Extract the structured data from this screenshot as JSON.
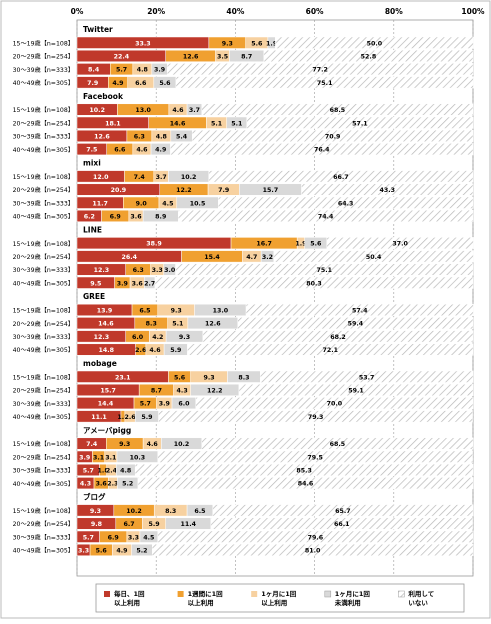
{
  "chart_data": {
    "type": "bar",
    "stacked": true,
    "orientation": "horizontal",
    "xlim": [
      0,
      100
    ],
    "x_ticks": [
      "0%",
      "20%",
      "40%",
      "60%",
      "80%",
      "100%"
    ],
    "colors": [
      "#c0392b",
      "#f0a030",
      "#f7d1a0",
      "#d9d9d9",
      "#ffffff"
    ],
    "legend": {
      "placement": "bottom",
      "items": [
        {
          "label": "毎日、1回以上利用",
          "color": "#c0392b"
        },
        {
          "label": "1週間に1回以上利用",
          "color": "#f0a030"
        },
        {
          "label": "1ヶ月に1回以上利用",
          "color": "#f7d1a0"
        },
        {
          "label": "1ヶ月に1回未満利用",
          "color": "#d9d9d9"
        },
        {
          "label": "利用していない",
          "color": "#ffffff"
        }
      ]
    },
    "groups": [
      {
        "name": "Twitter",
        "rows": [
          {
            "label": "15〜19歳【n=108】",
            "values": [
              33.3,
              9.3,
              5.6,
              1.9,
              50.0
            ]
          },
          {
            "label": "20〜29歳【n=254】",
            "values": [
              22.4,
              12.6,
              3.5,
              8.7,
              52.8
            ]
          },
          {
            "label": "30〜39歳【n=333】",
            "values": [
              8.4,
              5.7,
              4.8,
              3.9,
              77.2
            ]
          },
          {
            "label": "40〜49歳【n=305】",
            "values": [
              7.9,
              4.9,
              6.6,
              5.6,
              75.1
            ]
          }
        ]
      },
      {
        "name": "Facebook",
        "rows": [
          {
            "label": "15〜19歳【n=108】",
            "values": [
              10.2,
              13.0,
              4.6,
              3.7,
              68.5
            ]
          },
          {
            "label": "20〜29歳【n=254】",
            "values": [
              18.1,
              14.6,
              5.1,
              5.1,
              57.1
            ]
          },
          {
            "label": "30〜39歳【n=333】",
            "values": [
              12.6,
              6.3,
              4.8,
              5.4,
              70.9
            ]
          },
          {
            "label": "40〜49歳【n=305】",
            "values": [
              7.5,
              6.6,
              4.6,
              4.9,
              76.4
            ]
          }
        ]
      },
      {
        "name": "mixi",
        "rows": [
          {
            "label": "15〜19歳【n=108】",
            "values": [
              12.0,
              7.4,
              3.7,
              10.2,
              66.7
            ]
          },
          {
            "label": "20〜29歳【n=254】",
            "values": [
              20.9,
              12.2,
              7.9,
              15.7,
              43.3
            ]
          },
          {
            "label": "30〜39歳【n=333】",
            "values": [
              11.7,
              9.0,
              4.5,
              10.5,
              64.3
            ]
          },
          {
            "label": "40〜49歳【n=305】",
            "values": [
              6.2,
              6.9,
              3.6,
              8.9,
              74.4
            ]
          }
        ]
      },
      {
        "name": "LINE",
        "rows": [
          {
            "label": "15〜19歳【n=108】",
            "values": [
              38.9,
              16.7,
              1.9,
              5.6,
              37.0
            ]
          },
          {
            "label": "20〜29歳【n=254】",
            "values": [
              26.4,
              15.4,
              4.7,
              3.2,
              50.4
            ]
          },
          {
            "label": "30〜39歳【n=333】",
            "values": [
              12.3,
              6.3,
              3.3,
              3.0,
              75.1
            ]
          },
          {
            "label": "40〜49歳【n=305】",
            "values": [
              9.5,
              3.9,
              3.6,
              2.7,
              80.3
            ]
          }
        ]
      },
      {
        "name": "GREE",
        "rows": [
          {
            "label": "15〜19歳【n=108】",
            "values": [
              13.9,
              6.5,
              9.3,
              13.0,
              57.4
            ]
          },
          {
            "label": "20〜29歳【n=254】",
            "values": [
              14.6,
              8.3,
              5.1,
              12.6,
              59.4
            ]
          },
          {
            "label": "30〜39歳【n=333】",
            "values": [
              12.3,
              6.0,
              4.2,
              9.3,
              68.2
            ]
          },
          {
            "label": "40〜49歳【n=305】",
            "values": [
              14.8,
              2.6,
              4.6,
              5.9,
              72.1
            ]
          }
        ]
      },
      {
        "name": "mobage",
        "rows": [
          {
            "label": "15〜19歳【n=108】",
            "values": [
              23.1,
              5.6,
              9.3,
              8.3,
              53.7
            ]
          },
          {
            "label": "20〜29歳【n=254】",
            "values": [
              15.7,
              8.7,
              4.3,
              12.2,
              59.1
            ]
          },
          {
            "label": "30〜39歳【n=333】",
            "values": [
              14.4,
              5.7,
              3.9,
              6.0,
              70.0
            ]
          },
          {
            "label": "40〜49歳【n=305】",
            "values": [
              11.1,
              1.0,
              2.6,
              5.9,
              79.3
            ]
          }
        ]
      },
      {
        "name": "アメーバpigg",
        "rows": [
          {
            "label": "15〜19歳【n=108】",
            "values": [
              7.4,
              9.3,
              4.6,
              10.2,
              68.5
            ]
          },
          {
            "label": "20〜29歳【n=254】",
            "values": [
              3.9,
              3.1,
              3.1,
              10.3,
              79.5
            ]
          },
          {
            "label": "30〜39歳【n=333】",
            "values": [
              5.7,
              1.8,
              2.4,
              4.8,
              85.3
            ]
          },
          {
            "label": "40〜49歳【n=305】",
            "values": [
              4.3,
              3.6,
              2.3,
              5.2,
              84.6
            ]
          }
        ]
      },
      {
        "name": "ブログ",
        "rows": [
          {
            "label": "15〜19歳【n=108】",
            "values": [
              9.3,
              10.2,
              8.3,
              6.5,
              65.7
            ]
          },
          {
            "label": "20〜29歳【n=254】",
            "values": [
              9.8,
              6.7,
              5.9,
              11.4,
              66.1
            ]
          },
          {
            "label": "30〜39歳【n=333】",
            "values": [
              5.7,
              6.9,
              3.3,
              4.5,
              79.6
            ]
          },
          {
            "label": "40〜49歳【n=305】",
            "values": [
              3.3,
              5.6,
              4.9,
              5.2,
              81.0
            ]
          }
        ]
      }
    ]
  }
}
